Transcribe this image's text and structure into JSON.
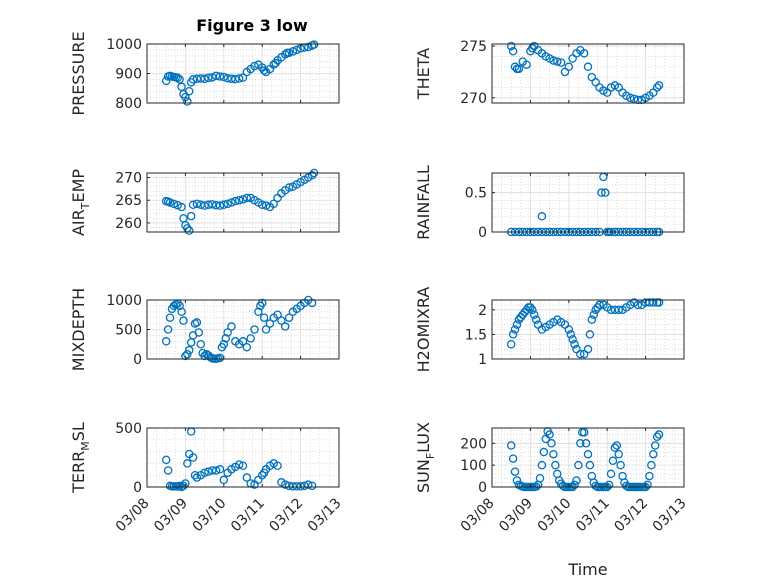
{
  "figure": {
    "title": "Figure 3 low",
    "xlabel": "Time",
    "x_ticks": [
      "03/08",
      "03/09",
      "03/10",
      "03/11",
      "03/12",
      "03/13"
    ],
    "marker_color": "#0072BD",
    "grid": true
  },
  "chart_data": [
    {
      "type": "scatter",
      "ylabel": "PRESSURE",
      "ylim": [
        800,
        1000
      ],
      "yticks": [
        "800",
        "900",
        "1000"
      ],
      "xlabel": "",
      "x": [
        8.5,
        8.55,
        8.6,
        8.65,
        8.7,
        8.75,
        8.8,
        8.85,
        8.9,
        8.95,
        9.0,
        9.05,
        9.1,
        9.15,
        9.2,
        9.3,
        9.4,
        9.5,
        9.6,
        9.7,
        9.8,
        9.9,
        10.0,
        10.1,
        10.2,
        10.3,
        10.4,
        10.5,
        10.6,
        10.7,
        10.8,
        10.9,
        11.0,
        11.05,
        11.1,
        11.2,
        11.3,
        11.35,
        11.4,
        11.5,
        11.6,
        11.65,
        11.7,
        11.8,
        11.9,
        12.0,
        12.1,
        12.2,
        12.3,
        12.35
      ],
      "y": [
        875,
        890,
        892,
        890,
        888,
        887,
        885,
        880,
        855,
        830,
        820,
        805,
        840,
        870,
        880,
        882,
        883,
        882,
        885,
        887,
        892,
        890,
        888,
        884,
        882,
        881,
        883,
        886,
        905,
        915,
        925,
        930,
        920,
        910,
        905,
        915,
        930,
        935,
        945,
        955,
        965,
        970,
        970,
        975,
        980,
        985,
        988,
        990,
        995,
        998
      ]
    },
    {
      "type": "scatter",
      "ylabel": "THETA",
      "ylim": [
        269.5,
        275.2
      ],
      "yticks": [
        "270",
        "275"
      ],
      "xlabel": "",
      "x": [
        8.5,
        8.55,
        8.6,
        8.65,
        8.7,
        8.8,
        8.9,
        9.0,
        9.05,
        9.1,
        9.2,
        9.3,
        9.4,
        9.5,
        9.6,
        9.7,
        9.8,
        9.9,
        10.0,
        10.1,
        10.2,
        10.3,
        10.4,
        10.5,
        10.6,
        10.7,
        10.8,
        10.9,
        11.0,
        11.1,
        11.2,
        11.3,
        11.4,
        11.5,
        11.6,
        11.7,
        11.8,
        11.9,
        12.0,
        12.1,
        12.2,
        12.3,
        12.35
      ],
      "y": [
        275.0,
        274.5,
        273.0,
        272.8,
        272.8,
        273.5,
        273.2,
        274.5,
        274.8,
        275.0,
        274.6,
        274.3,
        274.0,
        273.8,
        273.6,
        273.5,
        273.4,
        272.5,
        273.0,
        273.8,
        274.3,
        274.6,
        274.3,
        273.0,
        272.0,
        271.5,
        271.0,
        270.7,
        270.5,
        271.0,
        271.2,
        271.0,
        270.5,
        270.2,
        270.0,
        269.9,
        269.8,
        269.8,
        270.0,
        270.2,
        270.5,
        271.0,
        271.2
      ]
    },
    {
      "type": "scatter",
      "ylabel": "AIR_TEMP",
      "ylim": [
        258,
        271
      ],
      "yticks": [
        "260",
        "265",
        "270"
      ],
      "xlabel": "",
      "x": [
        8.5,
        8.55,
        8.6,
        8.7,
        8.8,
        8.9,
        8.95,
        9.0,
        9.05,
        9.1,
        9.15,
        9.2,
        9.3,
        9.4,
        9.5,
        9.6,
        9.7,
        9.8,
        9.9,
        10.0,
        10.1,
        10.2,
        10.3,
        10.4,
        10.5,
        10.6,
        10.7,
        10.8,
        10.9,
        11.0,
        11.1,
        11.2,
        11.3,
        11.4,
        11.5,
        11.6,
        11.7,
        11.8,
        11.9,
        12.0,
        12.1,
        12.2,
        12.3,
        12.35
      ],
      "y": [
        264.8,
        264.7,
        264.5,
        264.2,
        263.9,
        263.5,
        261.0,
        259.5,
        258.8,
        258.3,
        261.5,
        264.0,
        264.2,
        264.0,
        263.8,
        264.0,
        264.1,
        263.9,
        263.8,
        264.0,
        264.2,
        264.5,
        264.8,
        265.0,
        265.2,
        265.5,
        265.5,
        265.0,
        264.5,
        264.0,
        263.8,
        263.5,
        264.2,
        265.5,
        266.5,
        267.2,
        267.8,
        268.0,
        268.5,
        269.0,
        269.5,
        270.0,
        270.5,
        271.0
      ]
    },
    {
      "type": "scatter",
      "ylabel": "RAINFALL",
      "ylim": [
        0,
        0.75
      ],
      "yticks": [
        "0",
        "0.5"
      ],
      "xlabel": "",
      "x": [
        8.5,
        8.6,
        8.7,
        8.8,
        8.9,
        9.0,
        9.1,
        9.2,
        9.3,
        9.4,
        9.5,
        9.6,
        9.7,
        9.8,
        9.9,
        10.0,
        10.1,
        10.2,
        10.3,
        10.4,
        10.5,
        10.6,
        10.7,
        10.8,
        10.85,
        10.9,
        10.95,
        11.0,
        11.05,
        11.1,
        11.2,
        11.3,
        11.4,
        11.5,
        11.6,
        11.7,
        11.8,
        11.9,
        12.0,
        12.1,
        12.2,
        12.3,
        12.35,
        9.3
      ],
      "y": [
        0,
        0,
        0,
        0,
        0,
        0,
        0,
        0,
        0,
        0,
        0,
        0,
        0,
        0,
        0,
        0,
        0,
        0,
        0,
        0,
        0,
        0,
        0,
        0,
        0.5,
        0.7,
        0.5,
        0,
        0,
        0,
        0,
        0,
        0,
        0,
        0,
        0,
        0,
        0,
        0,
        0,
        0,
        0,
        0,
        0.2
      ]
    },
    {
      "type": "scatter",
      "ylabel": "MIXDEPTH",
      "ylim": [
        0,
        1000
      ],
      "yticks": [
        "0",
        "500",
        "1000"
      ],
      "xlabel": "",
      "x": [
        8.5,
        8.55,
        8.6,
        8.65,
        8.7,
        8.75,
        8.8,
        8.85,
        8.9,
        8.95,
        9.0,
        9.05,
        9.1,
        9.15,
        9.2,
        9.25,
        9.3,
        9.35,
        9.4,
        9.45,
        9.5,
        9.55,
        9.6,
        9.65,
        9.7,
        9.75,
        9.8,
        9.85,
        9.9,
        9.95,
        10.0,
        10.05,
        10.1,
        10.2,
        10.3,
        10.4,
        10.5,
        10.6,
        10.7,
        10.8,
        10.9,
        10.95,
        11.0,
        11.05,
        11.1,
        11.2,
        11.3,
        11.4,
        11.5,
        11.6,
        11.7,
        11.8,
        11.9,
        12.0,
        12.1,
        12.2,
        12.3
      ],
      "y": [
        300,
        500,
        700,
        850,
        900,
        920,
        940,
        900,
        800,
        650,
        50,
        80,
        150,
        280,
        400,
        600,
        620,
        450,
        250,
        100,
        50,
        80,
        60,
        30,
        10,
        5,
        5,
        10,
        20,
        200,
        250,
        350,
        450,
        550,
        300,
        250,
        300,
        200,
        350,
        500,
        800,
        900,
        950,
        700,
        500,
        600,
        700,
        750,
        650,
        550,
        700,
        800,
        850,
        900,
        950,
        1000,
        950
      ]
    },
    {
      "type": "scatter",
      "ylabel": "H2OMIXRA",
      "ylim": [
        1,
        2.2
      ],
      "yticks": [
        "1",
        "1.5",
        "2"
      ],
      "xlabel": "",
      "x": [
        8.5,
        8.55,
        8.6,
        8.65,
        8.7,
        8.75,
        8.8,
        8.85,
        8.9,
        8.95,
        9.0,
        9.05,
        9.1,
        9.15,
        9.2,
        9.3,
        9.4,
        9.5,
        9.6,
        9.7,
        9.8,
        9.9,
        10.0,
        10.05,
        10.1,
        10.15,
        10.2,
        10.3,
        10.4,
        10.5,
        10.55,
        10.6,
        10.65,
        10.7,
        10.75,
        10.8,
        10.9,
        11.0,
        11.1,
        11.2,
        11.3,
        11.4,
        11.5,
        11.6,
        11.7,
        11.8,
        11.9,
        12.0,
        12.1,
        12.2,
        12.3,
        12.35
      ],
      "y": [
        1.3,
        1.5,
        1.6,
        1.7,
        1.8,
        1.85,
        1.9,
        1.95,
        2.0,
        2.05,
        2.05,
        2.0,
        1.9,
        1.8,
        1.7,
        1.6,
        1.65,
        1.7,
        1.75,
        1.8,
        1.75,
        1.7,
        1.6,
        1.5,
        1.4,
        1.3,
        1.2,
        1.1,
        1.1,
        1.2,
        1.5,
        1.8,
        1.9,
        2.0,
        2.05,
        2.1,
        2.1,
        2.05,
        2.0,
        2.0,
        2.0,
        2.0,
        2.05,
        2.1,
        2.15,
        2.1,
        2.1,
        2.15,
        2.15,
        2.15,
        2.15,
        2.15
      ]
    },
    {
      "type": "scatter",
      "ylabel": "TERR_MSL",
      "ylim": [
        0,
        500
      ],
      "yticks": [
        "0",
        "500"
      ],
      "xlabel": "",
      "x": [
        8.5,
        8.55,
        8.6,
        8.65,
        8.7,
        8.75,
        8.8,
        8.85,
        8.9,
        8.95,
        9.0,
        9.05,
        9.1,
        9.15,
        9.2,
        9.25,
        9.3,
        9.4,
        9.5,
        9.6,
        9.7,
        9.8,
        9.9,
        10.0,
        10.1,
        10.2,
        10.3,
        10.4,
        10.5,
        10.6,
        10.7,
        10.8,
        10.9,
        11.0,
        11.05,
        11.1,
        11.2,
        11.3,
        11.4,
        11.5,
        11.6,
        11.7,
        11.8,
        11.9,
        12.0,
        12.1,
        12.2,
        12.3
      ],
      "y": [
        230,
        140,
        10,
        5,
        5,
        5,
        5,
        10,
        0,
        10,
        30,
        200,
        280,
        470,
        250,
        100,
        80,
        100,
        120,
        130,
        140,
        140,
        150,
        60,
        120,
        150,
        170,
        190,
        180,
        80,
        30,
        20,
        60,
        100,
        120,
        150,
        180,
        200,
        180,
        40,
        20,
        10,
        5,
        5,
        5,
        10,
        20,
        10
      ]
    },
    {
      "type": "scatter",
      "ylabel": "SUN_FLUX",
      "ylim": [
        0,
        270
      ],
      "yticks": [
        "0",
        "100",
        "200"
      ],
      "xlabel": "Time",
      "x": [
        8.5,
        8.55,
        8.6,
        8.65,
        8.7,
        8.75,
        8.8,
        8.85,
        8.9,
        8.95,
        9.0,
        9.05,
        9.1,
        9.15,
        9.2,
        9.25,
        9.3,
        9.35,
        9.4,
        9.45,
        9.5,
        9.55,
        9.6,
        9.65,
        9.7,
        9.75,
        9.8,
        9.85,
        9.9,
        9.95,
        10.0,
        10.05,
        10.1,
        10.15,
        10.2,
        10.25,
        10.3,
        10.35,
        10.4,
        10.45,
        10.5,
        10.55,
        10.6,
        10.65,
        10.7,
        10.75,
        10.8,
        10.85,
        10.9,
        10.95,
        11.0,
        11.05,
        11.1,
        11.15,
        11.2,
        11.25,
        11.3,
        11.35,
        11.4,
        11.45,
        11.5,
        11.55,
        11.6,
        11.65,
        11.7,
        11.75,
        11.8,
        11.85,
        11.9,
        11.95,
        12.0,
        12.05,
        12.1,
        12.15,
        12.2,
        12.25,
        12.3,
        12.35
      ],
      "y": [
        190,
        130,
        70,
        30,
        10,
        5,
        2,
        0,
        0,
        0,
        0,
        0,
        0,
        2,
        10,
        40,
        100,
        160,
        220,
        255,
        240,
        200,
        150,
        100,
        60,
        30,
        15,
        5,
        0,
        0,
        0,
        0,
        0,
        10,
        30,
        100,
        200,
        250,
        250,
        200,
        150,
        100,
        50,
        20,
        5,
        0,
        0,
        0,
        0,
        0,
        0,
        10,
        60,
        120,
        180,
        190,
        150,
        100,
        50,
        20,
        5,
        0,
        0,
        0,
        0,
        0,
        0,
        0,
        0,
        0,
        0,
        10,
        50,
        100,
        150,
        190,
        230,
        240
      ]
    }
  ]
}
